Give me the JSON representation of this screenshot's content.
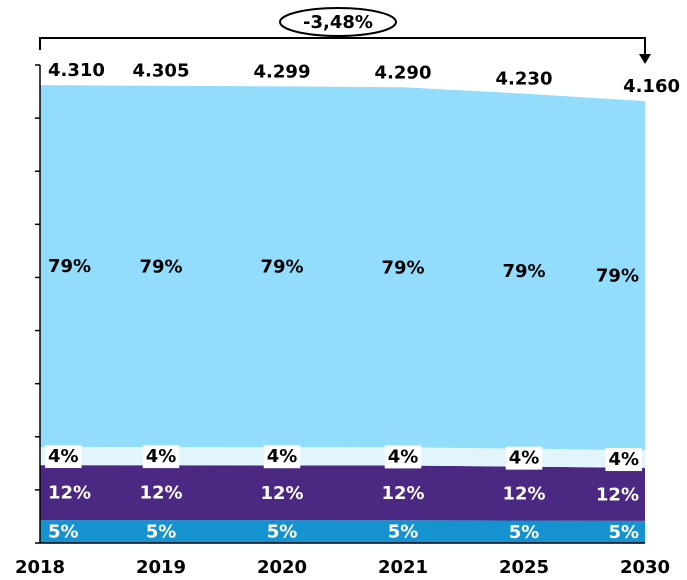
{
  "chart_data": {
    "type": "stacked_area",
    "annotation": "-3,48%",
    "categories": [
      "2018",
      "2019",
      "2020",
      "2021",
      "2025",
      "2030"
    ],
    "totals": {
      "values": [
        4310,
        4305,
        4299,
        4290,
        4230,
        4160
      ],
      "value_labels": [
        "4.310",
        "4.305",
        "4.299",
        "4.290",
        "4.230",
        "4.160"
      ]
    },
    "series": [
      {
        "color": "#1592d0",
        "values": [
          5,
          5,
          5,
          5,
          5,
          5
        ],
        "value_labels": [
          "5%",
          "5%",
          "5%",
          "5%",
          "5%",
          "5%"
        ],
        "label_color": "#ffffff"
      },
      {
        "color": "#4b2882",
        "values": [
          12,
          12,
          12,
          12,
          12,
          12
        ],
        "value_labels": [
          "12%",
          "12%",
          "12%",
          "12%",
          "12%",
          "12%"
        ],
        "label_color": "#ffffff"
      },
      {
        "color": "#e2f5fc",
        "values": [
          4,
          4,
          4,
          4,
          4,
          4
        ],
        "value_labels": [
          "4%",
          "4%",
          "4%",
          "4%",
          "4%",
          "4%"
        ],
        "label_color": "#000000",
        "label_box": true
      },
      {
        "color": "#92dcfc",
        "values": [
          79,
          79,
          79,
          79,
          79,
          79
        ],
        "value_labels": [
          "79%",
          "79%",
          "79%",
          "79%",
          "79%",
          "79%"
        ],
        "label_color": "#000000"
      }
    ],
    "ylim": [
      0,
      4500
    ],
    "yticks": [
      0,
      500,
      1000,
      1500,
      2000,
      2500,
      3000,
      3500,
      4000,
      4500
    ]
  }
}
